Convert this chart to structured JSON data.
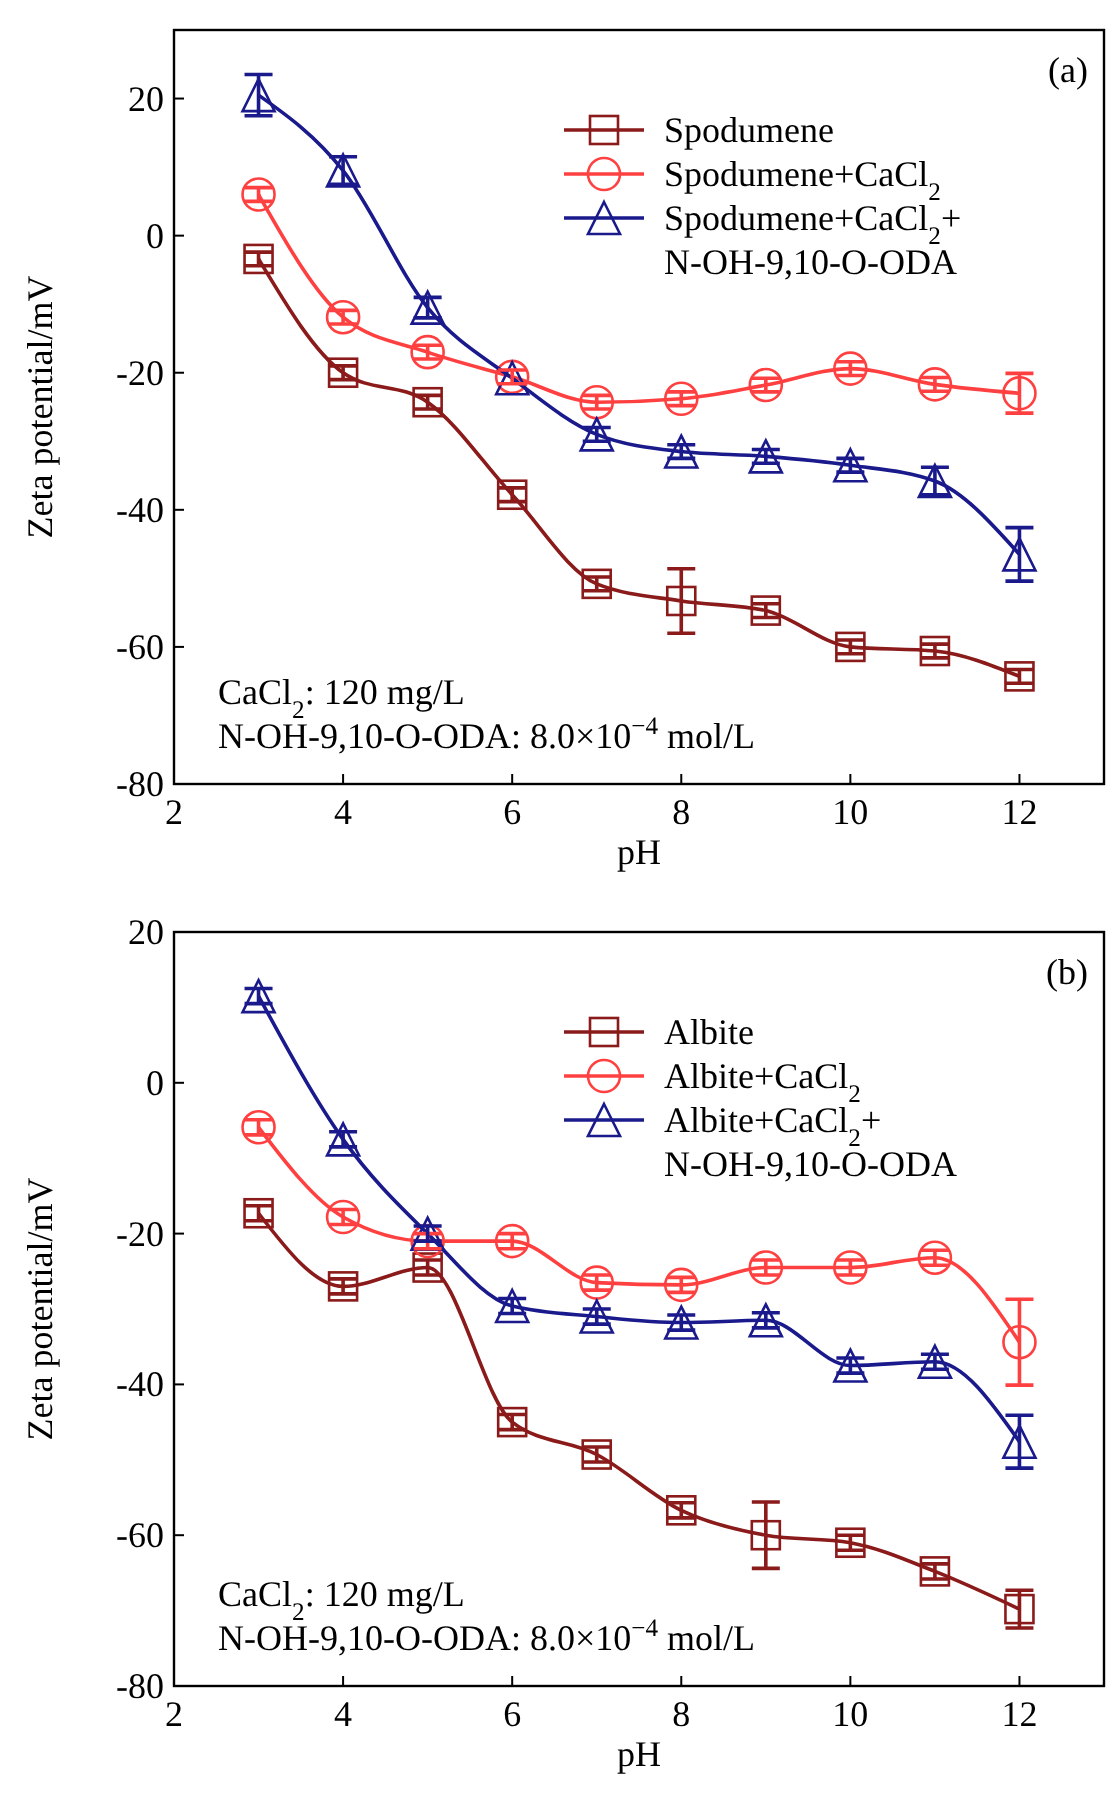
{
  "chart_data": [
    {
      "type": "line",
      "xlabel": "pH",
      "ylabel": "Zeta potential/mV",
      "x": [
        3,
        4,
        5,
        6,
        7,
        8,
        9,
        10,
        11,
        12
      ],
      "xlim": [
        2,
        13
      ],
      "xticks": [
        2,
        4,
        6,
        8,
        10,
        12
      ],
      "ylim": [
        -80,
        30
      ],
      "yticks": [
        -80,
        -60,
        -40,
        -20,
        0,
        20
      ],
      "legend": "top right",
      "grid": false,
      "annotations": [
        "(a)",
        "CaCl$_{2}$: 120 mg/L",
        "N-OH-9,10-O-ODA: 8.0×10$^{−4}$ mol/L"
      ],
      "series": [
        {
          "name": "Spodumene",
          "color": "#8b1a1a",
          "marker": "square",
          "values": [
            -3.4,
            -20,
            -24.3,
            -37.8,
            -50.8,
            -53.3,
            -54.7,
            -60,
            -60.6,
            -64.3
          ],
          "errors": [
            1,
            1,
            1,
            1,
            1,
            4.7,
            1,
            1,
            1,
            1
          ]
        },
        {
          "name": "Spodumene+CaCl$_{2}$",
          "color": "#ff4040",
          "marker": "circle",
          "values": [
            6,
            -11.9,
            -17,
            -20.6,
            -24.3,
            -23.8,
            -21.8,
            -19.4,
            -21.7,
            -23
          ],
          "errors": [
            1,
            1,
            1,
            1,
            1,
            1,
            1,
            1,
            1,
            2.9
          ]
        },
        {
          "name": "Spodumene+CaCl$_{2}$+\nN-OH-9,10-O-ODA",
          "color": "#1a1a8c",
          "marker": "triangle",
          "values": [
            20.5,
            9.5,
            -10.5,
            -20.8,
            -29,
            -31.5,
            -32.2,
            -33.5,
            -35.8,
            -46.5
          ],
          "errors": [
            3,
            2,
            1.5,
            null,
            1,
            1,
            1,
            1,
            2,
            3.9
          ]
        }
      ]
    },
    {
      "type": "line",
      "xlabel": "pH",
      "ylabel": "Zeta potential/mV",
      "x": [
        3,
        4,
        5,
        6,
        7,
        8,
        9,
        10,
        11,
        12
      ],
      "xlim": [
        2,
        13
      ],
      "xticks": [
        2,
        4,
        6,
        8,
        10,
        12
      ],
      "ylim": [
        -80,
        20
      ],
      "yticks": [
        -80,
        -60,
        -40,
        -20,
        0,
        20
      ],
      "legend": "top right",
      "grid": false,
      "annotations": [
        "(b)",
        "CaCl$_{2}$: 120 mg/L",
        "N-OH-9,10-O-ODA: 8.0×10$^{−4}$ mol/L"
      ],
      "series": [
        {
          "name": "Albite",
          "color": "#8b1a1a",
          "marker": "square",
          "values": [
            -17.3,
            -27,
            -24.5,
            -45,
            -49.3,
            -56.7,
            -60,
            -61,
            -64.8,
            -69.8
          ],
          "errors": [
            1,
            1,
            1,
            1,
            1,
            1,
            4.4,
            1,
            1,
            2.5
          ]
        },
        {
          "name": "Albite+CaCl$_{2}$",
          "color": "#ff4040",
          "marker": "circle",
          "values": [
            -5.9,
            -17.8,
            -21,
            -21,
            -26.5,
            -26.8,
            -24.5,
            -24.5,
            -23.2,
            -34.4
          ],
          "errors": [
            1,
            1,
            1,
            1,
            1,
            1,
            1,
            1,
            1,
            5.7
          ]
        },
        {
          "name": "Albite+CaCl$_{2}$+\nN-OH-9,10-O-ODA",
          "color": "#1a1a8c",
          "marker": "triangle",
          "values": [
            11.5,
            -7.5,
            -20,
            -29.6,
            -31,
            -31.8,
            -31.5,
            -37.5,
            -37,
            -47.6
          ],
          "errors": [
            1,
            1,
            1,
            1,
            1,
            1,
            1,
            1,
            1,
            3.5
          ]
        }
      ]
    }
  ]
}
